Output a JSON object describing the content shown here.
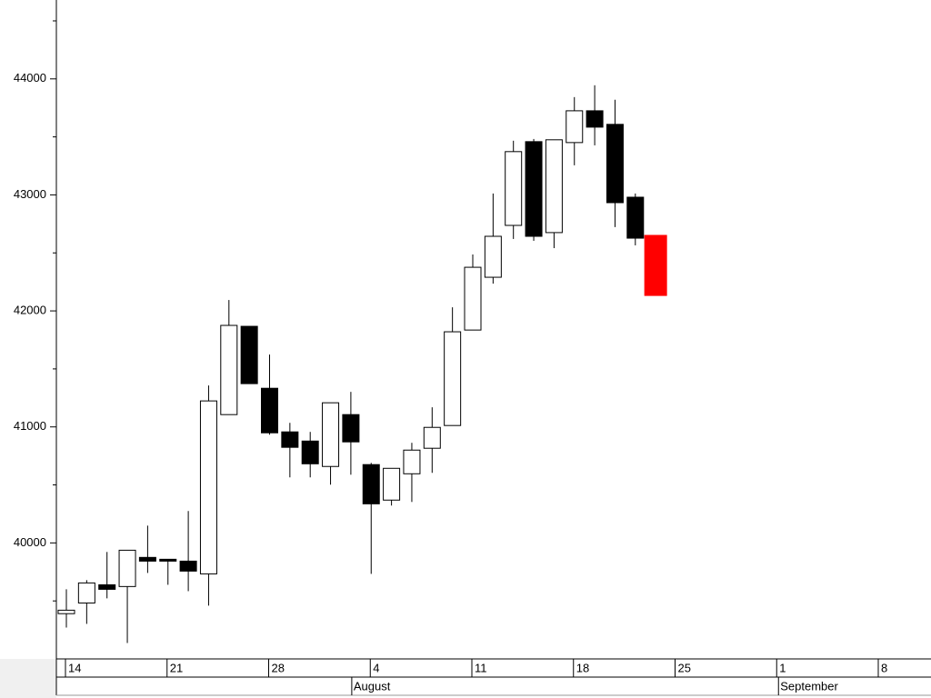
{
  "chart_data": {
    "type": "candlestick",
    "categories": [
      "14",
      "15",
      "16",
      "17",
      "18",
      "21",
      "22",
      "23",
      "24",
      "25",
      "28",
      "29",
      "30",
      "31",
      "1",
      "4",
      "5",
      "6",
      "7",
      "8",
      "11",
      "12",
      "13",
      "14",
      "15",
      "18",
      "19",
      "20",
      "21",
      "22"
    ],
    "series": [
      {
        "name": "open",
        "values": [
          39390,
          39482,
          39639,
          39624,
          39875,
          39859,
          39843,
          39733,
          41106,
          41867,
          41333,
          40957,
          40878,
          40659,
          41106,
          40675,
          40369,
          40596,
          40816,
          41012,
          41835,
          42290,
          42737,
          43459,
          42675,
          43451,
          43725,
          43608,
          42980,
          42651
        ]
      },
      {
        "name": "high",
        "values": [
          39600,
          39679,
          39922,
          39937,
          40149,
          39859,
          40275,
          41357,
          42094,
          41867,
          41624,
          41035,
          40957,
          41208,
          41302,
          40690,
          40643,
          40863,
          41169,
          42031,
          42486,
          43012,
          43467,
          43482,
          43475,
          43843,
          43945,
          43820,
          43012,
          42651
        ]
      },
      {
        "name": "low",
        "values": [
          39270,
          39302,
          39522,
          39137,
          39741,
          39639,
          39584,
          39459,
          41106,
          41373,
          40933,
          40565,
          40565,
          40502,
          40588,
          39733,
          40322,
          40353,
          40604,
          41012,
          41835,
          42235,
          42620,
          42604,
          42541,
          43255,
          43427,
          42722,
          42565,
          42133
        ]
      },
      {
        "name": "close",
        "values": [
          39420,
          39655,
          39600,
          39937,
          39843,
          39843,
          39757,
          41224,
          41875,
          41373,
          40949,
          40824,
          40682,
          41208,
          40871,
          40337,
          40643,
          40800,
          40996,
          41820,
          42376,
          42643,
          43373,
          42643,
          43475,
          43725,
          43584,
          42933,
          42627,
          42133
        ]
      }
    ],
    "colors": {
      "up": "#ffffff",
      "down": "#000000",
      "last": "#ff0000"
    },
    "ylim": [
      39000,
      44680
    ],
    "yticks": [
      40000,
      41000,
      42000,
      43000,
      44000
    ],
    "yminorticks": [
      39500,
      40500,
      41500,
      42500,
      43500,
      44500
    ],
    "xticks": [
      "14",
      "21",
      "28",
      "4",
      "11",
      "18",
      "25",
      "1",
      "8"
    ],
    "months": [
      "August",
      "September"
    ]
  }
}
